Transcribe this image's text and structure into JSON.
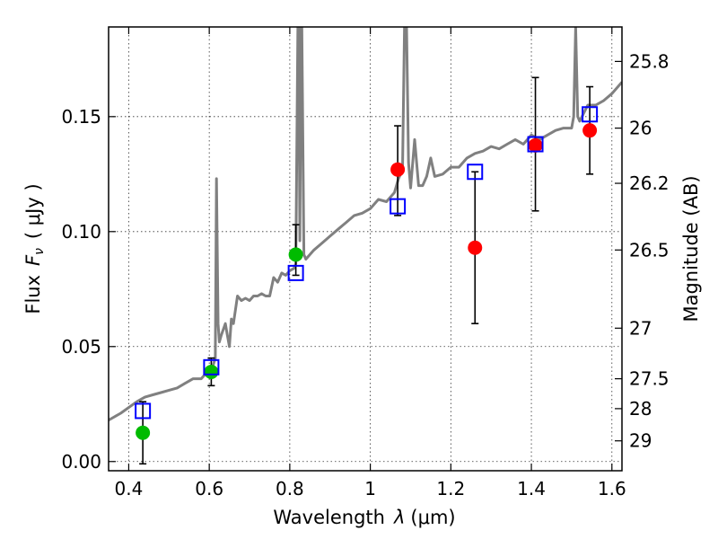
{
  "chart_data": {
    "type": "scatter",
    "xlabel": "Wavelength",
    "xlabel_symbol": "λ",
    "xlabel_unit": "(μm)",
    "ylabel": "Flux",
    "ylabel_symbol": "F",
    "ylabel_subscript": "ν",
    "ylabel_unit": "( μJy )",
    "y2label": "Magnitude (AB)",
    "xlim": [
      0.35,
      1.625
    ],
    "ylim": [
      -0.004,
      0.189
    ],
    "grid": true,
    "x_ticks": [
      0.4,
      0.6,
      0.8,
      1.0,
      1.2,
      1.4,
      1.6
    ],
    "x_tick_labels": [
      "0.4",
      "0.6",
      "0.8",
      "1",
      "1.2",
      "1.4",
      "1.6"
    ],
    "y_ticks": [
      0.0,
      0.05,
      0.1,
      0.15
    ],
    "y_tick_labels": [
      "0.00",
      "0.05",
      "0.10",
      "0.15"
    ],
    "y2_ticks": [
      {
        "label": "25.8",
        "flux": 0.174
      },
      {
        "label": "26",
        "flux": 0.145
      },
      {
        "label": "26.2",
        "flux": 0.121
      },
      {
        "label": "26.5",
        "flux": 0.092
      },
      {
        "label": "27",
        "flux": 0.058
      },
      {
        "label": "27.5",
        "flux": 0.036
      },
      {
        "label": "28",
        "flux": 0.023
      },
      {
        "label": "29",
        "flux": 0.009
      }
    ],
    "series": [
      {
        "name": "spectrum",
        "kind": "line",
        "color": "#808080",
        "x": [
          0.35,
          0.38,
          0.42,
          0.44,
          0.46,
          0.48,
          0.5,
          0.52,
          0.54,
          0.56,
          0.58,
          0.6,
          0.61,
          0.615,
          0.618,
          0.622,
          0.625,
          0.63,
          0.64,
          0.645,
          0.65,
          0.655,
          0.66,
          0.67,
          0.68,
          0.69,
          0.7,
          0.71,
          0.72,
          0.73,
          0.74,
          0.75,
          0.76,
          0.77,
          0.78,
          0.79,
          0.8,
          0.81,
          0.815,
          0.82,
          0.822,
          0.825,
          0.828,
          0.83,
          0.835,
          0.84,
          0.86,
          0.88,
          0.9,
          0.92,
          0.94,
          0.96,
          0.98,
          1.0,
          1.02,
          1.04,
          1.06,
          1.07,
          1.075,
          1.08,
          1.085,
          1.09,
          1.095,
          1.1,
          1.11,
          1.12,
          1.13,
          1.14,
          1.15,
          1.16,
          1.18,
          1.2,
          1.22,
          1.24,
          1.26,
          1.28,
          1.3,
          1.32,
          1.34,
          1.36,
          1.38,
          1.4,
          1.42,
          1.44,
          1.46,
          1.48,
          1.5,
          1.505,
          1.51,
          1.515,
          1.52,
          1.54,
          1.56,
          1.58,
          1.6,
          1.625
        ],
        "y": [
          0.018,
          0.021,
          0.026,
          0.028,
          0.029,
          0.03,
          0.031,
          0.032,
          0.034,
          0.036,
          0.036,
          0.04,
          0.042,
          0.045,
          0.123,
          0.06,
          0.052,
          0.055,
          0.06,
          0.055,
          0.05,
          0.062,
          0.06,
          0.072,
          0.07,
          0.071,
          0.07,
          0.072,
          0.072,
          0.073,
          0.072,
          0.072,
          0.08,
          0.078,
          0.082,
          0.081,
          0.083,
          0.084,
          0.086,
          0.189,
          0.189,
          0.096,
          0.189,
          0.189,
          0.09,
          0.088,
          0.092,
          0.095,
          0.098,
          0.101,
          0.104,
          0.107,
          0.108,
          0.11,
          0.114,
          0.113,
          0.117,
          0.123,
          0.125,
          0.127,
          0.189,
          0.189,
          0.13,
          0.119,
          0.14,
          0.12,
          0.12,
          0.124,
          0.132,
          0.124,
          0.125,
          0.128,
          0.128,
          0.132,
          0.134,
          0.135,
          0.137,
          0.136,
          0.138,
          0.14,
          0.138,
          0.142,
          0.14,
          0.142,
          0.144,
          0.145,
          0.145,
          0.15,
          0.189,
          0.15,
          0.148,
          0.155,
          0.155,
          0.157,
          0.16,
          0.165
        ]
      },
      {
        "name": "observed (green)",
        "kind": "points",
        "color": "#00bb00",
        "x": [
          0.435,
          0.605,
          0.815
        ],
        "y": [
          0.0125,
          0.039,
          0.09
        ],
        "yerr_low": [
          -0.001,
          0.033,
          0.081
        ],
        "yerr_high": [
          0.026,
          0.045,
          0.103
        ]
      },
      {
        "name": "observed (red)",
        "kind": "points",
        "color": "#ff0000",
        "x": [
          1.068,
          1.26,
          1.41,
          1.545
        ],
        "y": [
          0.127,
          0.093,
          0.1375,
          0.144
        ],
        "yerr_low": [
          0.107,
          0.06,
          0.109,
          0.125
        ],
        "yerr_high": [
          0.146,
          0.126,
          0.167,
          0.163
        ]
      },
      {
        "name": "model (blue squares)",
        "kind": "squares",
        "color": "#0000ff",
        "x": [
          0.435,
          0.605,
          0.815,
          1.068,
          1.26,
          1.41,
          1.545
        ],
        "y": [
          0.022,
          0.041,
          0.082,
          0.111,
          0.126,
          0.138,
          0.151
        ]
      }
    ]
  }
}
